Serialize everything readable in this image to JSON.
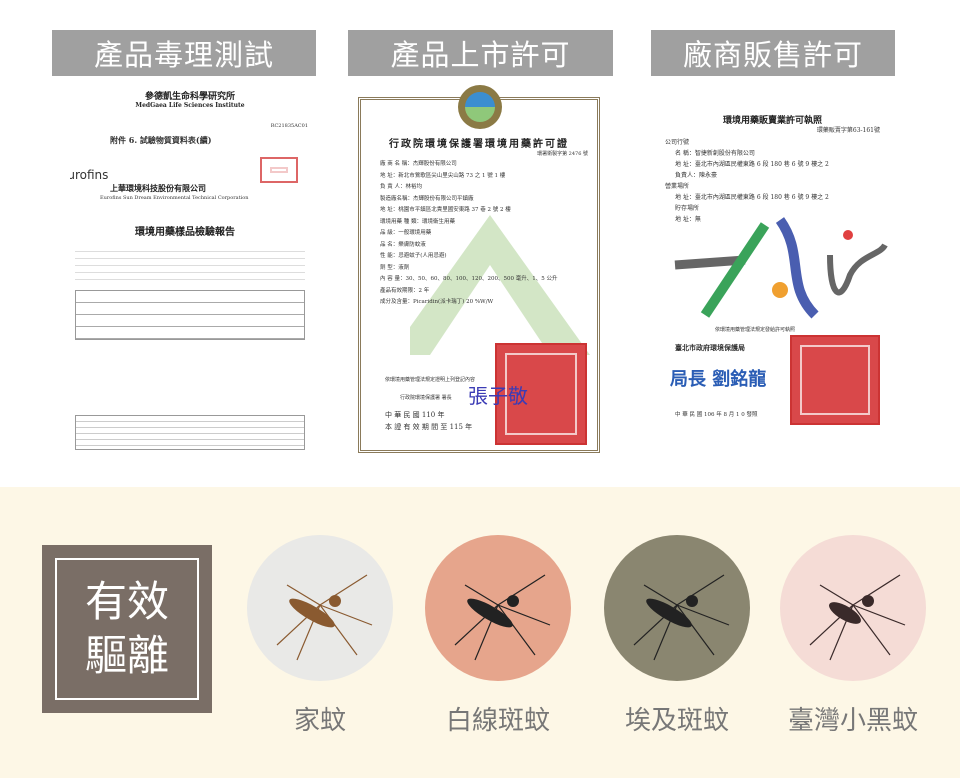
{
  "headers": [
    "產品毒理測試",
    "產品上市許可",
    "廠商販售許可"
  ],
  "cert_toxicology": {
    "institute_cn": "參德凱生命科學研究所",
    "institute_en": "MedGaea Life Sciences Institute",
    "ref": "RC21835AC01",
    "attachment": "附件 6. 試驗物質資料表(續)",
    "lab_logo": "eurofins",
    "company_cn": "上華環境科技股份有限公司",
    "company_en": "Eurofins Sun Dream Environmental Technical Corporation",
    "report_title": "環境用藥樣品檢驗報告"
  },
  "cert_market": {
    "title": "行政院環境保護署環境用藥許可證",
    "number": "環署衛製字第 2476 號",
    "rows": [
      "廠 商 名 稱：杰輝股份有限公司",
      "地 址：新北市鶯歌區尖山里尖山路 73 之 1 號 1 樓",
      "負 責 人：林裕均",
      "製造廠名稱：杰輝股份有限公司平鎮廠",
      "地 址：桃園市平鎮區北貴里國安東路 37 巷 2 號 2 樓",
      "環境用藥 種 類：環境衛生用藥",
      "品 級：一般環境用藥",
      "品 名：樂膚防蚊液",
      "性 能：忌避蚊子(人用忌避)",
      "劑 型：液劑",
      "內 容 量：30、50、60、80、100、120、200、500 毫升、1、5 公升",
      "產品有效期限：2 年",
      "成分及含量：Picaridin(派卡瑞丁)  20 %W/W"
    ],
    "footer": "依環境用藥管理法規定證明上列登記內容",
    "issuer": "行政院環境保護署 署長",
    "signature": "張子敬",
    "date": "中 華 民 國 110 年",
    "valid": "本 證 有 效 期 間 至 115 年"
  },
  "cert_sales": {
    "title": "環境用藥販賣業許可執照",
    "number": "環藥販賣字第63-161號",
    "rows": [
      "公司行號",
      "名 稱：智捷新創股份有限公司",
      "地 址：臺北市內湖區民權東路 6 段 180 巷 6 號 9 樓之 2",
      "負責人：陳永豪",
      "營業場所",
      "地 址：臺北市內湖區民權東路 6 段 180 巷 6 號 9 樓之 2",
      "貯存場所",
      "地 址：無"
    ],
    "logo_text": "Taipei",
    "footer": "依環境用藥管理法規定發給許可執照",
    "issuer": "臺北市政府環境保護局",
    "signature": "局長 劉銘龍",
    "date": "中 華 民 國 106 年 8 月 1 0 發照"
  },
  "badge": {
    "line1": "有效",
    "line2": "驅離"
  },
  "mosquitoes": [
    {
      "label": "家蚊",
      "bg": "#e9e9e7"
    },
    {
      "label": "白線斑蚊",
      "bg": "#e6a58c"
    },
    {
      "label": "埃及斑蚊",
      "bg": "#8a8670"
    },
    {
      "label": "臺灣小黑蚊",
      "bg": "#f5dcd6"
    }
  ],
  "colors": {
    "header_bg": "#a0a0a0",
    "badge_bg": "#7a6e66",
    "panel_bg": "#fdf7e6",
    "seal": "#d9484a"
  }
}
